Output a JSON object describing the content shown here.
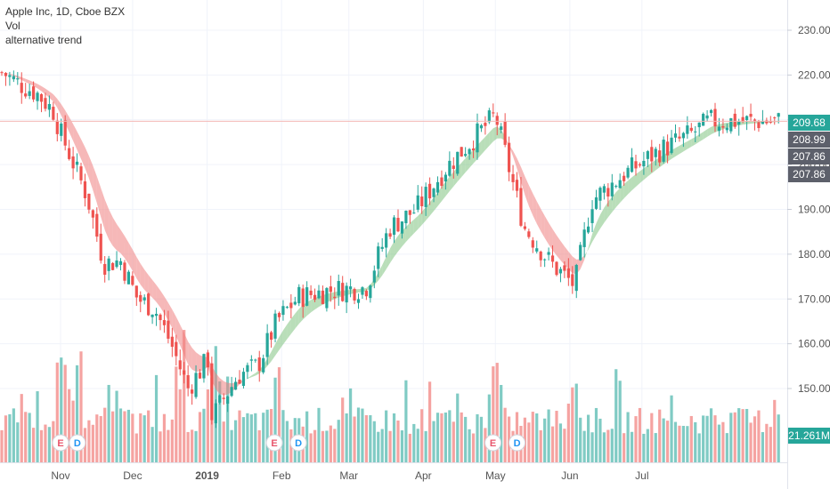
{
  "header": {
    "title": "Apple Inc, 1D, Cboe BZX",
    "indicator_1": "Vol",
    "indicator_2": "alternative trend"
  },
  "colors": {
    "up": "#26a69a",
    "down": "#ef5350",
    "vol_up": "#80cbc4",
    "vol_down": "#f5a3a1",
    "trend_up": "#7fc27f",
    "trend_down": "#ef7d7d",
    "grid": "#f0f3fa",
    "axis_text": "#555555",
    "last_price_line": "#f5b7b5"
  },
  "badges": {
    "last_price": "209.68",
    "label_2": "208.99",
    "label_3": "207.86",
    "label_4": "207.86",
    "volume": "21.261M"
  },
  "events": [
    {
      "label": "E",
      "date": "2018-11-01"
    },
    {
      "label": "D",
      "date": "2018-11-08"
    },
    {
      "label": "E",
      "date": "2019-01-29"
    },
    {
      "label": "D",
      "date": "2019-02-08"
    },
    {
      "label": "E",
      "date": "2019-04-30"
    },
    {
      "label": "D",
      "date": "2019-05-10"
    }
  ],
  "chart_data": {
    "type": "candlestick",
    "title": "Apple Inc, 1D, Cboe BZX",
    "x_ticks": [
      "Nov",
      "Dec",
      "2019",
      "Feb",
      "Mar",
      "Apr",
      "May",
      "Jun",
      "Jul"
    ],
    "y_ticks": [
      150,
      160,
      170,
      180,
      190,
      200,
      210,
      220,
      230
    ],
    "ylim": [
      139,
      237
    ],
    "last_price": 209.68,
    "grid": true,
    "series": [
      {
        "name": "Vol",
        "type": "bar"
      },
      {
        "name": "alternative trend",
        "type": "band"
      }
    ],
    "points": [
      {
        "date": "2018-10-08",
        "price": 220.5,
        "volume": "med"
      },
      {
        "date": "2018-10-15",
        "price": 218.0,
        "volume": "med"
      },
      {
        "date": "2018-10-22",
        "price": 216.0,
        "volume": "high"
      },
      {
        "date": "2018-10-29",
        "price": 212.0,
        "volume": "high"
      },
      {
        "date": "2018-11-01",
        "price": 207.0,
        "volume": "high"
      },
      {
        "date": "2018-11-05",
        "price": 202.0,
        "volume": "high"
      },
      {
        "date": "2018-11-12",
        "price": 193.0,
        "volume": "high"
      },
      {
        "date": "2018-11-19",
        "price": 178.0,
        "volume": "high"
      },
      {
        "date": "2018-11-26",
        "price": 178.5,
        "volume": "med"
      },
      {
        "date": "2018-12-03",
        "price": 170.0,
        "volume": "high"
      },
      {
        "date": "2018-12-10",
        "price": 168.0,
        "volume": "med"
      },
      {
        "date": "2018-12-17",
        "price": 160.0,
        "volume": "high"
      },
      {
        "date": "2018-12-24",
        "price": 150.0,
        "volume": "high"
      },
      {
        "date": "2019-01-02",
        "price": 157.0,
        "volume": "high"
      },
      {
        "date": "2019-01-03",
        "price": 143.5,
        "volume": "very high"
      },
      {
        "date": "2019-01-14",
        "price": 153.0,
        "volume": "med"
      },
      {
        "date": "2019-01-22",
        "price": 155.0,
        "volume": "med"
      },
      {
        "date": "2019-01-30",
        "price": 165.0,
        "volume": "high"
      },
      {
        "date": "2019-02-08",
        "price": 170.5,
        "volume": "med"
      },
      {
        "date": "2019-02-22",
        "price": 172.0,
        "volume": "low"
      },
      {
        "date": "2019-03-08",
        "price": 172.5,
        "volume": "med"
      },
      {
        "date": "2019-03-18",
        "price": 186.0,
        "volume": "high"
      },
      {
        "date": "2019-03-29",
        "price": 190.0,
        "volume": "med"
      },
      {
        "date": "2019-04-10",
        "price": 199.0,
        "volume": "med"
      },
      {
        "date": "2019-04-24",
        "price": 207.0,
        "volume": "med"
      },
      {
        "date": "2019-05-01",
        "price": 211.0,
        "volume": "very high"
      },
      {
        "date": "2019-05-13",
        "price": 186.0,
        "volume": "high"
      },
      {
        "date": "2019-05-24",
        "price": 178.0,
        "volume": "med"
      },
      {
        "date": "2019-06-03",
        "price": 173.0,
        "volume": "high"
      },
      {
        "date": "2019-06-10",
        "price": 192.0,
        "volume": "med"
      },
      {
        "date": "2019-06-24",
        "price": 198.0,
        "volume": "med"
      },
      {
        "date": "2019-07-08",
        "price": 203.0,
        "volume": "low"
      },
      {
        "date": "2019-07-22",
        "price": 207.0,
        "volume": "med"
      },
      {
        "date": "2019-07-29",
        "price": 209.68,
        "volume": "med"
      }
    ]
  }
}
